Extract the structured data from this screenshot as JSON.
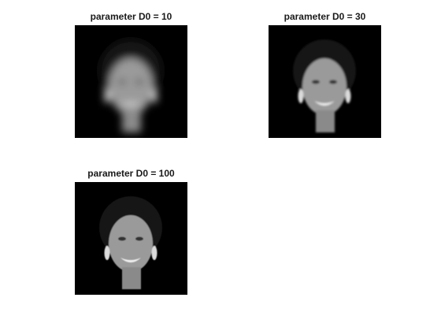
{
  "figure": {
    "panels": [
      {
        "title": "parameter D0 = 10",
        "blur": 5.0
      },
      {
        "title": "parameter D0 = 30",
        "blur": 1.4
      },
      {
        "title": "parameter D0 = 100",
        "blur": 0.4
      }
    ],
    "colors": {
      "background": "#ffffff",
      "axes": "#000000",
      "hair": "#141414",
      "skin": "#9a9a9a",
      "teeth": "#f0f0f0",
      "earring": "#dcdcdc"
    }
  }
}
